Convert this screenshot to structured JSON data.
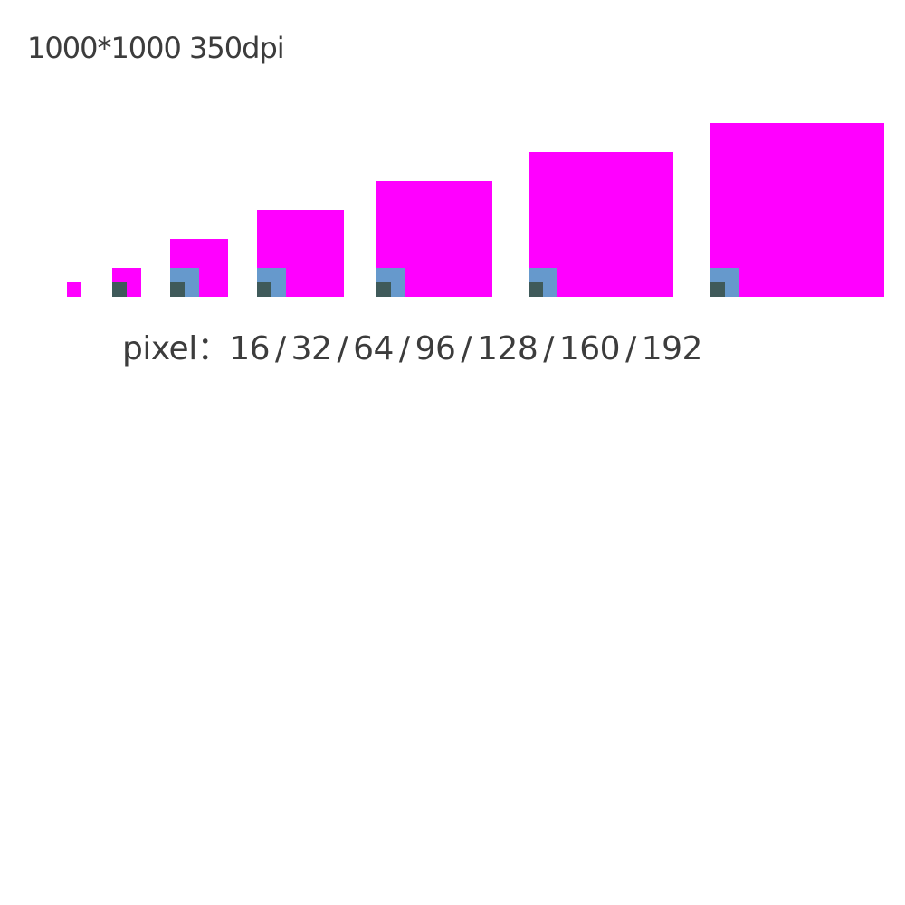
{
  "title": "1000*1000 350dpi",
  "caption": {
    "label": "pixel：",
    "separator": "/",
    "sizes": [
      16,
      32,
      64,
      96,
      128,
      160,
      192
    ]
  }
}
